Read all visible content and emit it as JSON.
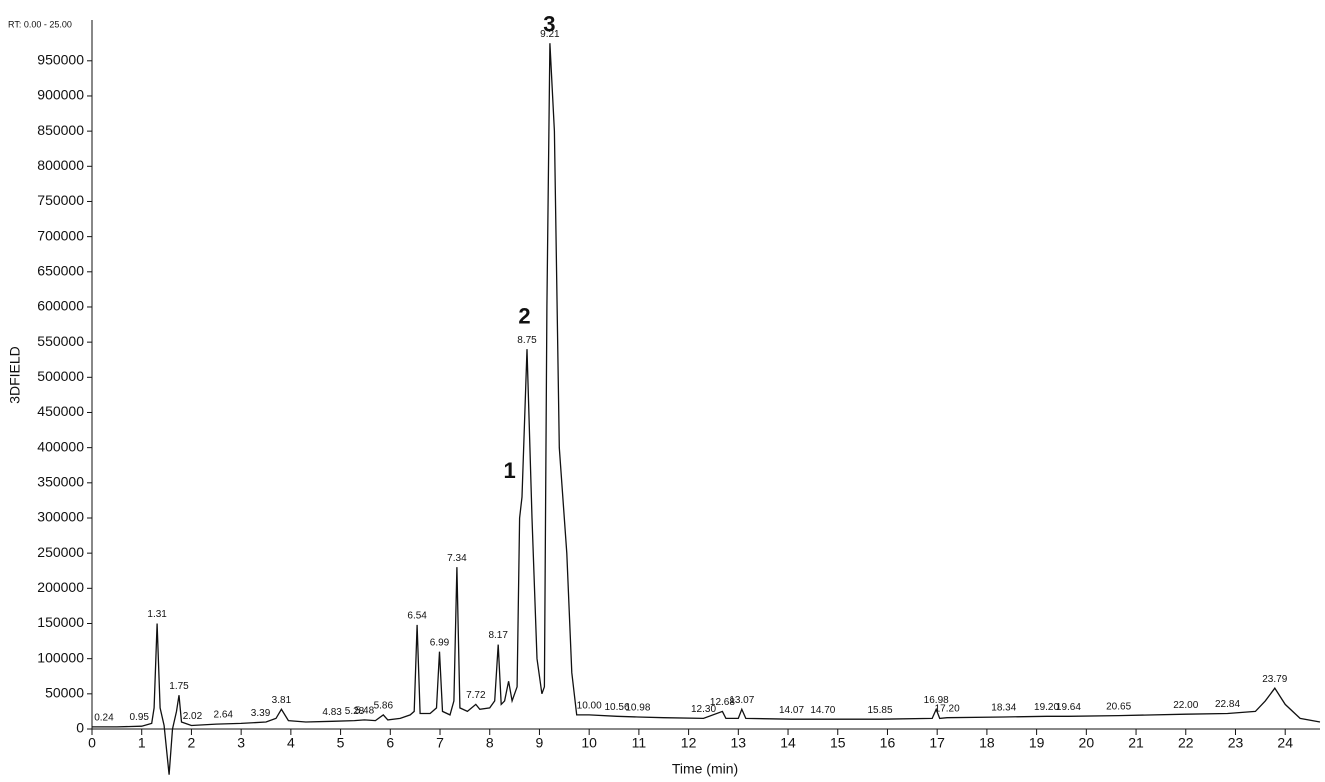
{
  "chart_data": {
    "type": "line",
    "header": "RT: 0.00 - 25.00",
    "ylabel": "3DFIELD",
    "xlabel": "Time (min)",
    "color": "#111111",
    "xlim": [
      0,
      24.7
    ],
    "ylim": [
      0,
      1008000
    ],
    "xticks": [
      0,
      1,
      2,
      3,
      4,
      5,
      6,
      7,
      8,
      9,
      10,
      11,
      12,
      13,
      14,
      15,
      16,
      17,
      18,
      19,
      20,
      21,
      22,
      23,
      24
    ],
    "yticks": [
      0,
      50000,
      100000,
      150000,
      200000,
      250000,
      300000,
      350000,
      400000,
      450000,
      500000,
      550000,
      600000,
      650000,
      700000,
      750000,
      800000,
      850000,
      900000,
      950000
    ],
    "x": [
      0,
      0.5,
      1.0,
      1.2,
      1.25,
      1.31,
      1.37,
      1.45,
      1.55,
      1.62,
      1.7,
      1.75,
      1.8,
      2.0,
      2.5,
      3.0,
      3.5,
      3.7,
      3.81,
      3.95,
      4.3,
      4.83,
      5.28,
      5.48,
      5.7,
      5.86,
      5.95,
      6.2,
      6.4,
      6.48,
      6.54,
      6.6,
      6.8,
      6.93,
      6.99,
      7.05,
      7.2,
      7.28,
      7.34,
      7.4,
      7.55,
      7.72,
      7.8,
      8.0,
      8.1,
      8.17,
      8.23,
      8.3,
      8.38,
      8.45,
      8.55,
      8.6,
      8.65,
      8.75,
      8.85,
      8.95,
      9.05,
      9.1,
      9.15,
      9.21,
      9.3,
      9.4,
      9.55,
      9.65,
      9.75,
      10.0,
      10.56,
      10.98,
      11.5,
      12.3,
      12.68,
      12.75,
      13.0,
      13.07,
      13.15,
      14.07,
      14.7,
      15.85,
      16.9,
      16.98,
      17.05,
      17.2,
      18.34,
      19.2,
      19.64,
      20.65,
      22.0,
      22.84,
      23.4,
      23.6,
      23.79,
      24.0,
      24.3,
      24.7
    ],
    "values": [
      3000,
      3000,
      4000,
      8000,
      30000,
      150000,
      30000,
      5000,
      -65000,
      0,
      25000,
      48000,
      10000,
      5000,
      7000,
      8000,
      10000,
      15000,
      28000,
      12000,
      10000,
      11000,
      12000,
      13000,
      12000,
      20000,
      13000,
      15000,
      20000,
      25000,
      148000,
      22000,
      22000,
      30000,
      110000,
      25000,
      20000,
      40000,
      230000,
      30000,
      25000,
      35000,
      28000,
      30000,
      40000,
      120000,
      35000,
      40000,
      68000,
      40000,
      60000,
      300000,
      330000,
      540000,
      300000,
      100000,
      50000,
      60000,
      600000,
      975000,
      850000,
      400000,
      250000,
      80000,
      20000,
      20000,
      18000,
      17000,
      16000,
      15000,
      25000,
      15000,
      15000,
      28000,
      15000,
      14000,
      14000,
      14000,
      15000,
      28000,
      15000,
      16000,
      17000,
      18000,
      18000,
      19000,
      21000,
      22000,
      25000,
      40000,
      58000,
      35000,
      15000,
      10000
    ],
    "peak_labels": [
      {
        "label": "0.24",
        "x": 0.24
      },
      {
        "label": "0.95",
        "x": 0.95
      },
      {
        "label": "1.31",
        "x": 1.31
      },
      {
        "label": "1.75",
        "x": 1.75
      },
      {
        "label": "2.02",
        "x": 2.02
      },
      {
        "label": "2.64",
        "x": 2.64
      },
      {
        "label": "3.39",
        "x": 3.39
      },
      {
        "label": "3.81",
        "x": 3.81
      },
      {
        "label": "4.83",
        "x": 4.83
      },
      {
        "label": "5.28",
        "x": 5.28
      },
      {
        "label": "5.48",
        "x": 5.48
      },
      {
        "label": "5.86",
        "x": 5.86
      },
      {
        "label": "6.54",
        "x": 6.54
      },
      {
        "label": "6.99",
        "x": 6.99
      },
      {
        "label": "7.34",
        "x": 7.34
      },
      {
        "label": "7.72",
        "x": 7.72
      },
      {
        "label": "8.17",
        "x": 8.17
      },
      {
        "label": "8.75",
        "x": 8.75
      },
      {
        "label": "9.21",
        "x": 9.21
      },
      {
        "label": "10.00",
        "x": 10.0
      },
      {
        "label": "10.56",
        "x": 10.56
      },
      {
        "label": "10.98",
        "x": 10.98
      },
      {
        "label": "12.30",
        "x": 12.3
      },
      {
        "label": "12.68",
        "x": 12.68
      },
      {
        "label": "13.07",
        "x": 13.07
      },
      {
        "label": "14.07",
        "x": 14.07
      },
      {
        "label": "14.70",
        "x": 14.7
      },
      {
        "label": "15.85",
        "x": 15.85
      },
      {
        "label": "16.98",
        "x": 16.98
      },
      {
        "label": "17.20",
        "x": 17.2
      },
      {
        "label": "18.34",
        "x": 18.34
      },
      {
        "label": "19.20",
        "x": 19.2
      },
      {
        "label": "19.64",
        "x": 19.64
      },
      {
        "label": "20.65",
        "x": 20.65
      },
      {
        "label": "22.00",
        "x": 22.0
      },
      {
        "label": "22.84",
        "x": 22.84
      },
      {
        "label": "23.79",
        "x": 23.79
      }
    ],
    "annotations": [
      {
        "text": "1",
        "x": 8.4,
        "y": 365000
      },
      {
        "text": "2",
        "x": 8.7,
        "y": 585000
      },
      {
        "text": "3",
        "x": 9.2,
        "y": 1000000
      }
    ]
  }
}
